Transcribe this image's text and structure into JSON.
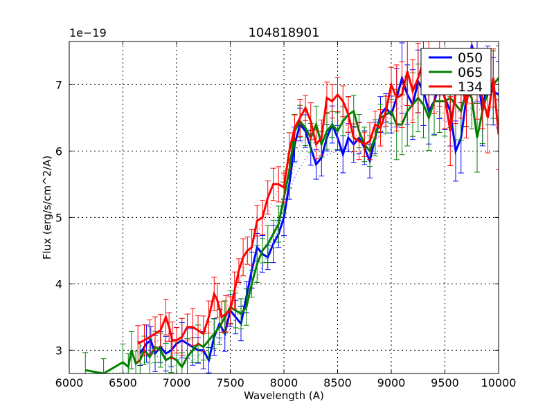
{
  "chart_data": {
    "type": "line",
    "title": "104818901",
    "xlabel": "Wavelength (A)",
    "ylabel": "Flux (erg/s/cm^2/A)",
    "y_offset_text": "1e−19",
    "y_scale": 1e-19,
    "xlim": [
      6000,
      10000
    ],
    "ylim": [
      2.65,
      7.65
    ],
    "xticks": [
      6000,
      6500,
      7000,
      7500,
      8000,
      8500,
      9000,
      9500,
      10000
    ],
    "xtick_labels": [
      "6000",
      "6500",
      "7000",
      "7500",
      "8000",
      "8500",
      "9000",
      "9500",
      "10000"
    ],
    "yticks": [
      3,
      4,
      5,
      6,
      7
    ],
    "ytick_labels": [
      "3",
      "4",
      "5",
      "6",
      "7"
    ],
    "grid": true,
    "legend_position": "upper right",
    "error_bars": true,
    "series": [
      {
        "name": "050",
        "color": "#0000ff",
        "x": [
          6660,
          6720,
          6760,
          6800,
          6850,
          6900,
          6950,
          7000,
          7050,
          7100,
          7150,
          7200,
          7250,
          7300,
          7350,
          7400,
          7450,
          7500,
          7550,
          7600,
          7650,
          7700,
          7750,
          7800,
          7850,
          7900,
          7950,
          8000,
          8050,
          8100,
          8150,
          8200,
          8250,
          8300,
          8350,
          8400,
          8450,
          8500,
          8550,
          8600,
          8650,
          8700,
          8750,
          8800,
          8850,
          8900,
          8950,
          9000,
          9050,
          9100,
          9150,
          9200,
          9250,
          9300,
          9350,
          9400,
          9450,
          9500,
          9550,
          9600,
          9650,
          9700,
          9750,
          9800,
          9850,
          9900,
          9950,
          10000
        ],
        "values": [
          2.95,
          3.1,
          3.15,
          2.95,
          3.05,
          2.95,
          3.0,
          3.1,
          3.15,
          3.1,
          3.05,
          3.0,
          3.0,
          2.85,
          3.2,
          3.4,
          3.25,
          3.6,
          3.5,
          3.4,
          3.8,
          4.2,
          4.55,
          4.45,
          4.4,
          4.6,
          4.75,
          5.0,
          5.5,
          6.1,
          6.4,
          6.3,
          6.05,
          5.8,
          5.9,
          6.2,
          6.4,
          6.2,
          5.95,
          6.2,
          6.1,
          6.2,
          6.05,
          5.85,
          6.2,
          6.55,
          6.65,
          6.55,
          6.8,
          7.1,
          6.85,
          6.7,
          7.05,
          6.9,
          6.6,
          6.75,
          7.0,
          6.8,
          6.6,
          6.0,
          6.2,
          6.8,
          7.6,
          7.2,
          6.6,
          7.1,
          6.9,
          6.85
        ]
      },
      {
        "name": "065",
        "color": "#008000",
        "x": [
          6150,
          6320,
          6500,
          6550,
          6580,
          6620,
          6660,
          6700,
          6750,
          6800,
          6850,
          6900,
          6950,
          7000,
          7050,
          7100,
          7150,
          7200,
          7250,
          7300,
          7350,
          7400,
          7450,
          7500,
          7550,
          7600,
          7650,
          7700,
          7750,
          7800,
          7850,
          7900,
          7950,
          8000,
          8050,
          8100,
          8150,
          8200,
          8250,
          8300,
          8350,
          8400,
          8450,
          8500,
          8550,
          8600,
          8650,
          8700,
          8750,
          8800,
          8850,
          8900,
          8950,
          9000,
          9050,
          9100,
          9150,
          9200,
          9250,
          9300,
          9350,
          9400,
          9450,
          9500,
          9550,
          9600,
          9650,
          9700,
          9750,
          9800,
          9850,
          9900,
          9950,
          10000
        ],
        "values": [
          2.7,
          2.65,
          2.82,
          2.75,
          3.0,
          2.8,
          2.85,
          3.0,
          2.9,
          3.05,
          3.0,
          2.85,
          2.9,
          2.85,
          2.75,
          2.9,
          3.0,
          3.1,
          3.05,
          3.15,
          3.25,
          3.35,
          3.5,
          3.65,
          3.6,
          3.55,
          3.65,
          4.0,
          4.3,
          4.5,
          4.6,
          4.75,
          4.9,
          5.3,
          5.7,
          6.3,
          6.45,
          6.35,
          6.2,
          6.4,
          6.1,
          6.3,
          6.4,
          6.3,
          6.45,
          6.55,
          6.6,
          6.3,
          6.1,
          6.0,
          6.2,
          6.5,
          6.55,
          6.6,
          6.4,
          6.4,
          6.6,
          6.7,
          6.8,
          6.7,
          6.5,
          6.75,
          6.75,
          6.75,
          6.8,
          6.7,
          6.6,
          6.9,
          6.8,
          6.2,
          6.6,
          6.9,
          7.0,
          7.1
        ]
      },
      {
        "name": "134",
        "color": "#ff0000",
        "x": [
          6640,
          6700,
          6750,
          6800,
          6850,
          6900,
          6930,
          6960,
          7000,
          7050,
          7100,
          7150,
          7200,
          7250,
          7300,
          7350,
          7380,
          7420,
          7460,
          7500,
          7540,
          7580,
          7620,
          7660,
          7700,
          7750,
          7800,
          7850,
          7900,
          7950,
          8000,
          8050,
          8100,
          8150,
          8200,
          8250,
          8300,
          8350,
          8400,
          8450,
          8500,
          8550,
          8600,
          8650,
          8700,
          8750,
          8800,
          8850,
          8900,
          8950,
          9000,
          9050,
          9100,
          9150,
          9200,
          9250,
          9300,
          9350,
          9400,
          9450,
          9500,
          9550,
          9600,
          9650,
          9700,
          9750,
          9800,
          9850,
          9900,
          9950,
          10000
        ],
        "values": [
          3.1,
          3.15,
          3.2,
          3.25,
          3.3,
          3.5,
          3.35,
          3.15,
          3.15,
          3.2,
          3.35,
          3.35,
          3.3,
          3.25,
          3.5,
          3.85,
          3.75,
          3.5,
          3.55,
          3.6,
          3.9,
          4.2,
          4.4,
          4.5,
          4.55,
          4.95,
          5.0,
          5.3,
          5.5,
          5.5,
          5.45,
          6.0,
          6.35,
          6.5,
          6.65,
          6.45,
          6.1,
          6.2,
          6.8,
          6.75,
          6.85,
          6.75,
          6.55,
          6.2,
          6.15,
          6.1,
          6.15,
          6.4,
          6.35,
          6.6,
          7.0,
          6.8,
          6.85,
          7.2,
          6.9,
          7.1,
          7.35,
          7.2,
          7.0,
          7.2,
          6.8,
          6.3,
          6.9,
          7.0,
          6.7,
          7.2,
          7.0,
          6.8,
          6.5,
          7.1,
          6.25
        ]
      }
    ]
  },
  "legend": {
    "items": [
      {
        "label": "050",
        "color": "#0000ff"
      },
      {
        "label": "065",
        "color": "#008000"
      },
      {
        "label": "134",
        "color": "#ff0000"
      }
    ]
  }
}
